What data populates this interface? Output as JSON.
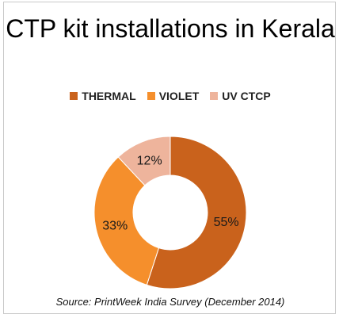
{
  "chart_data": {
    "type": "pie",
    "title": "CTP kit installations in Kerala",
    "categories": [
      "THERMAL",
      "VIOLET",
      "UV CTCP"
    ],
    "values": [
      55,
      33,
      12
    ],
    "labels": [
      "55%",
      "33%",
      "12%"
    ],
    "colors": [
      "#c9621c",
      "#f58f2c",
      "#eeb49c"
    ],
    "legend_position": "top",
    "donut": true
  },
  "source": "Source: PrintWeek India Survey (December 2014)"
}
